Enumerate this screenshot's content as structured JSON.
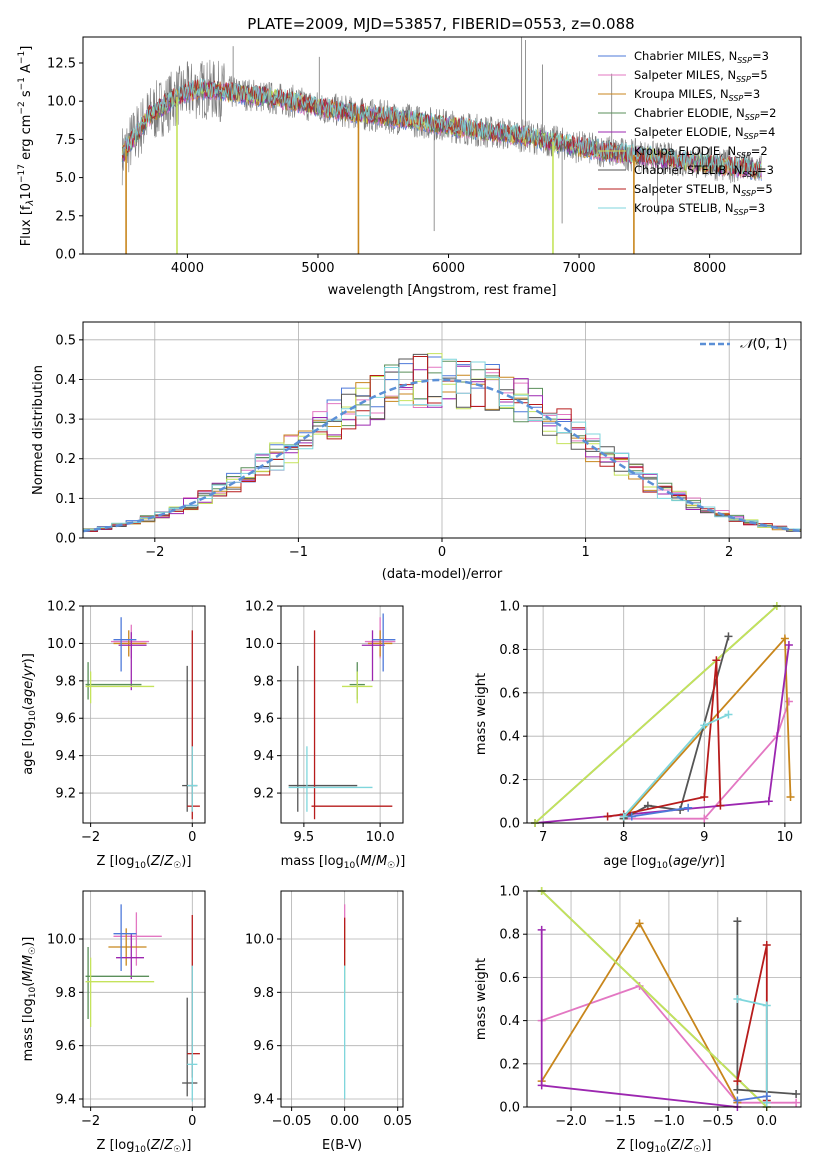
{
  "chart_data": [
    {
      "id": "spectrum",
      "type": "line",
      "title": "PLATE=2009, MJD=53857, FIBERID=0553, z=0.088",
      "xlabel": "wavelength [Angstrom, rest frame]",
      "ylabel": "Flux [f",
      "xlim": [
        3200,
        8700
      ],
      "ylim": [
        0,
        14.2
      ],
      "xticks": [
        4000,
        5000,
        6000,
        7000,
        8000
      ],
      "yticks": [
        0.0,
        2.5,
        5.0,
        7.5,
        10.0,
        12.5
      ],
      "ytick_labels": [
        "0.0",
        "2.5",
        "5.0",
        "7.5",
        "10.0",
        "12.5"
      ],
      "grid": false,
      "legend_position": "top-right",
      "series": [
        {
          "name": "Chabrier MILES, N",
          "nssp": 3,
          "color": "#4e79d9"
        },
        {
          "name": "Salpeter MILES, N",
          "nssp": 5,
          "color": "#e377c2"
        },
        {
          "name": "Kroupa MILES, N",
          "nssp": 3,
          "color": "#c8861c"
        },
        {
          "name": "Chabrier ELODIE, N",
          "nssp": 2,
          "color": "#5a8f5a"
        },
        {
          "name": "Salpeter ELODIE, N",
          "nssp": 4,
          "color": "#9c27b0"
        },
        {
          "name": "Kroupa ELODIE, N",
          "nssp": 2,
          "color": "#c5e35b"
        },
        {
          "name": "Chabrier STELIB, N",
          "nssp": 3,
          "color": "#555555"
        },
        {
          "name": "Salpeter STELIB, N",
          "nssp": 5,
          "color": "#b71c1c"
        },
        {
          "name": "Kroupa STELIB, N",
          "nssp": 3,
          "color": "#7fd6dc"
        }
      ],
      "ssp_sub": "SSP",
      "model_continuum": {
        "x": [
          3500,
          3700,
          3900,
          4000,
          4100,
          4300,
          4500,
          4800,
          5000,
          5300,
          5600,
          6000,
          6300,
          6600,
          7000,
          7300,
          7600,
          7900,
          8100,
          8400
        ],
        "y": [
          6.5,
          9.0,
          10.2,
          10.6,
          10.8,
          10.6,
          10.4,
          10.0,
          9.6,
          9.2,
          8.9,
          8.4,
          8.0,
          7.7,
          7.0,
          6.6,
          6.3,
          6.0,
          5.8,
          5.5
        ]
      },
      "model_dropouts": [
        {
          "x": 3530,
          "color": "#c8861c"
        },
        {
          "x": 3920,
          "color": "#c5e35b"
        },
        {
          "x": 5310,
          "color": "#c8861c"
        },
        {
          "x": 6800,
          "color": "#c5e35b"
        },
        {
          "x": 7420,
          "color": "#c8861c"
        }
      ],
      "data_spikes": [
        {
          "x": 6560,
          "top": 14.2
        },
        {
          "x": 6590,
          "top": 14.0
        },
        {
          "x": 4350,
          "top": 13.6
        },
        {
          "x": 5010,
          "top": 12.9
        },
        {
          "x": 6720,
          "top": 12.4
        },
        {
          "x": 7250,
          "top": 11.8
        },
        {
          "x": 5890,
          "top": 1.5,
          "down": true
        },
        {
          "x": 6870,
          "top": 2.0,
          "down": true
        },
        {
          "x": 7600,
          "top": 2.6,
          "down": true
        }
      ]
    },
    {
      "id": "residuals",
      "type": "histogram",
      "xlabel": "(data-model)/error",
      "ylabel": "Normed distribution",
      "xlim": [
        -2.5,
        2.5
      ],
      "ylim": [
        0,
        0.545
      ],
      "xticks": [
        -2,
        -1,
        0,
        1,
        2
      ],
      "xtick_labels": [
        "−2",
        "−1",
        "0",
        "1",
        "2"
      ],
      "yticks": [
        0.0,
        0.1,
        0.2,
        0.3,
        0.4,
        0.5
      ],
      "ytick_labels": [
        "0.0",
        "0.1",
        "0.2",
        "0.3",
        "0.4",
        "0.5"
      ],
      "grid": true,
      "legend_position": "top-right",
      "reference_curve": {
        "name": "N(0, 1)",
        "label_main": "𝒩",
        "label_args": "(0, 1)",
        "color": "#5b8fd6",
        "dashed": true
      },
      "series_colors": [
        "#4e79d9",
        "#e377c2",
        "#c8861c",
        "#5a8f5a",
        "#9c27b0",
        "#c5e35b",
        "#555555",
        "#b71c1c",
        "#7fd6dc"
      ],
      "bin_width": 0.1,
      "bin_start": -2.5
    },
    {
      "id": "age-vs-z",
      "type": "scatter",
      "xlabel": "Z [log",
      "ylabel": "age  [log",
      "xlim": [
        -2.15,
        0.25
      ],
      "ylim": [
        9.04,
        10.2
      ],
      "xticks": [
        -2,
        0
      ],
      "xtick_labels": [
        "−2",
        "0"
      ],
      "yticks": [
        9.2,
        9.4,
        9.6,
        9.8,
        10.0,
        10.2
      ],
      "ytick_labels": [
        "9.2",
        "9.4",
        "9.6",
        "9.8",
        "10.0",
        "10.2"
      ],
      "grid": true,
      "points": [
        {
          "x": -1.2,
          "y": 10.01,
          "xlo": -1.6,
          "xhi": -0.85,
          "ylo": 9.92,
          "yhi": 10.1,
          "color": "#e377c2"
        },
        {
          "x": -1.25,
          "y": 10.0,
          "xlo": -1.55,
          "xhi": -0.9,
          "ylo": 9.93,
          "yhi": 10.07,
          "color": "#c8861c"
        },
        {
          "x": -1.2,
          "y": 9.99,
          "xlo": -1.45,
          "xhi": -0.9,
          "ylo": 9.75,
          "yhi": 10.06,
          "color": "#9c27b0"
        },
        {
          "x": -1.4,
          "y": 10.02,
          "xlo": -1.55,
          "xhi": -1.1,
          "ylo": 9.85,
          "yhi": 10.14,
          "color": "#4e79d9"
        },
        {
          "x": -2.05,
          "y": 9.78,
          "xlo": -2.1,
          "xhi": -1.0,
          "ylo": 9.7,
          "yhi": 9.9,
          "color": "#5a8f5a"
        },
        {
          "x": -2.0,
          "y": 9.77,
          "xlo": -2.1,
          "xhi": -0.75,
          "ylo": 9.68,
          "yhi": 9.85,
          "color": "#c5e35b"
        },
        {
          "x": -0.1,
          "y": 9.24,
          "xlo": -0.2,
          "xhi": 0.1,
          "ylo": 9.1,
          "yhi": 9.88,
          "color": "#555555"
        },
        {
          "x": 0.0,
          "y": 9.13,
          "xlo": -0.1,
          "xhi": 0.15,
          "ylo": 9.06,
          "yhi": 10.07,
          "color": "#b71c1c"
        },
        {
          "x": 0.0,
          "y": 9.24,
          "xlo": -0.1,
          "xhi": 0.1,
          "ylo": 9.1,
          "yhi": 9.45,
          "color": "#7fd6dc"
        }
      ]
    },
    {
      "id": "age-vs-mass",
      "type": "scatter",
      "xlabel": "mass [log",
      "ylabel": "",
      "xlim": [
        9.35,
        10.15
      ],
      "ylim": [
        9.04,
        10.2
      ],
      "xticks": [
        9.5,
        10.0
      ],
      "xtick_labels": [
        "9.5",
        "10.0"
      ],
      "yticks": [
        9.2,
        9.4,
        9.6,
        9.8,
        10.0,
        10.2
      ],
      "ytick_labels": [
        "9.2",
        "9.4",
        "9.6",
        "9.8",
        "10.0",
        "10.2"
      ],
      "grid": true,
      "points": [
        {
          "x": 10.0,
          "y": 10.01,
          "xlo": 9.9,
          "xhi": 10.1,
          "ylo": 9.92,
          "yhi": 10.14,
          "color": "#e377c2"
        },
        {
          "x": 10.0,
          "y": 10.0,
          "xlo": 9.92,
          "xhi": 10.08,
          "ylo": 9.93,
          "yhi": 10.07,
          "color": "#c8861c"
        },
        {
          "x": 9.95,
          "y": 9.99,
          "xlo": 9.88,
          "xhi": 10.03,
          "ylo": 9.8,
          "yhi": 10.07,
          "color": "#9c27b0"
        },
        {
          "x": 10.02,
          "y": 10.02,
          "xlo": 9.95,
          "xhi": 10.1,
          "ylo": 9.85,
          "yhi": 10.16,
          "color": "#4e79d9"
        },
        {
          "x": 9.85,
          "y": 9.78,
          "xlo": 9.8,
          "xhi": 9.9,
          "ylo": 9.7,
          "yhi": 9.9,
          "color": "#5a8f5a"
        },
        {
          "x": 9.85,
          "y": 9.77,
          "xlo": 9.75,
          "xhi": 9.95,
          "ylo": 9.68,
          "yhi": 9.85,
          "color": "#c5e35b"
        },
        {
          "x": 9.46,
          "y": 9.24,
          "xlo": 9.4,
          "xhi": 9.85,
          "ylo": 9.1,
          "yhi": 9.88,
          "color": "#555555"
        },
        {
          "x": 9.57,
          "y": 9.13,
          "xlo": 9.55,
          "xhi": 10.08,
          "ylo": 9.06,
          "yhi": 10.07,
          "color": "#b71c1c"
        },
        {
          "x": 9.52,
          "y": 9.23,
          "xlo": 9.4,
          "xhi": 9.95,
          "ylo": 9.1,
          "yhi": 9.45,
          "color": "#7fd6dc"
        }
      ]
    },
    {
      "id": "weight-vs-age",
      "type": "line",
      "xlabel": "age  [log",
      "ylabel": "mass weight",
      "xlim": [
        6.8,
        10.2
      ],
      "ylim": [
        0,
        1.0
      ],
      "xticks": [
        7,
        8,
        9,
        10
      ],
      "xtick_labels": [
        "7",
        "8",
        "9",
        "10"
      ],
      "yticks": [
        0.0,
        0.2,
        0.4,
        0.6,
        0.8,
        1.0
      ],
      "ytick_labels": [
        "0.0",
        "0.2",
        "0.4",
        "0.6",
        "0.8",
        "1.0"
      ],
      "grid": true,
      "series": [
        {
          "color": "#e377c2",
          "x": [
            8.0,
            9.0,
            9.9,
            10.05
          ],
          "y": [
            0.02,
            0.02,
            0.4,
            0.56
          ]
        },
        {
          "color": "#c8861c",
          "x": [
            8.0,
            10.0,
            10.07
          ],
          "y": [
            0.02,
            0.85,
            0.12
          ]
        },
        {
          "color": "#9c27b0",
          "x": [
            6.9,
            9.8,
            10.05
          ],
          "y": [
            0.0,
            0.1,
            0.82
          ]
        },
        {
          "color": "#5a8f5a",
          "x": [
            6.9,
            9.9
          ],
          "y": [
            0.0,
            1.0
          ]
        },
        {
          "color": "#c5e35b",
          "x": [
            6.9,
            9.9
          ],
          "y": [
            0.0,
            1.0
          ]
        },
        {
          "color": "#555555",
          "x": [
            8.0,
            8.3,
            8.7,
            9.3
          ],
          "y": [
            0.02,
            0.08,
            0.06,
            0.86
          ]
        },
        {
          "color": "#b71c1c",
          "x": [
            7.8,
            8.0,
            9.0,
            9.15,
            9.2
          ],
          "y": [
            0.03,
            0.04,
            0.12,
            0.75,
            0.08
          ]
        },
        {
          "color": "#7fd6dc",
          "x": [
            8.0,
            9.0,
            9.3
          ],
          "y": [
            0.03,
            0.45,
            0.5
          ]
        },
        {
          "color": "#4e79d9",
          "x": [
            8.1,
            8.8
          ],
          "y": [
            0.03,
            0.07
          ]
        }
      ]
    },
    {
      "id": "mass-vs-z",
      "type": "scatter",
      "xlabel": "Z [log",
      "ylabel": "mass [log",
      "xlim": [
        -2.15,
        0.25
      ],
      "ylim": [
        9.37,
        10.18
      ],
      "xticks": [
        -2,
        0
      ],
      "xtick_labels": [
        "−2",
        "0"
      ],
      "yticks": [
        9.4,
        9.6,
        9.8,
        10.0
      ],
      "ytick_labels": [
        "9.4",
        "9.6",
        "9.8",
        "10.0"
      ],
      "grid": true,
      "points": [
        {
          "x": -1.1,
          "y": 10.01,
          "xlo": -1.55,
          "xhi": -0.6,
          "ylo": 9.9,
          "yhi": 10.1,
          "color": "#e377c2"
        },
        {
          "x": -1.3,
          "y": 9.97,
          "xlo": -1.65,
          "xhi": -0.9,
          "ylo": 9.9,
          "yhi": 10.04,
          "color": "#c8861c"
        },
        {
          "x": -1.2,
          "y": 9.93,
          "xlo": -1.5,
          "xhi": -0.95,
          "ylo": 9.85,
          "yhi": 10.02,
          "color": "#9c27b0"
        },
        {
          "x": -1.4,
          "y": 10.02,
          "xlo": -1.55,
          "xhi": -1.1,
          "ylo": 9.88,
          "yhi": 10.13,
          "color": "#4e79d9"
        },
        {
          "x": -2.05,
          "y": 9.86,
          "xlo": -2.1,
          "xhi": -0.85,
          "ylo": 9.7,
          "yhi": 9.97,
          "color": "#5a8f5a"
        },
        {
          "x": -2.0,
          "y": 9.84,
          "xlo": -2.1,
          "xhi": -0.75,
          "ylo": 9.67,
          "yhi": 9.93,
          "color": "#c5e35b"
        },
        {
          "x": -0.1,
          "y": 9.46,
          "xlo": -0.2,
          "xhi": 0.1,
          "ylo": 9.41,
          "yhi": 9.78,
          "color": "#555555"
        },
        {
          "x": 0.0,
          "y": 9.57,
          "xlo": -0.1,
          "xhi": 0.15,
          "ylo": 9.48,
          "yhi": 10.09,
          "color": "#b71c1c"
        },
        {
          "x": 0.0,
          "y": 9.53,
          "xlo": -0.1,
          "xhi": 0.1,
          "ylo": 9.39,
          "yhi": 9.9,
          "color": "#7fd6dc"
        }
      ]
    },
    {
      "id": "mass-vs-ebv",
      "type": "scatter",
      "xlabel": "E(B-V)",
      "ylabel": "",
      "xlim": [
        -0.06,
        0.055
      ],
      "ylim": [
        9.37,
        10.18
      ],
      "xticks": [
        -0.05,
        0.0,
        0.05
      ],
      "xtick_labels": [
        "−0.05",
        "0.00",
        "0.05"
      ],
      "yticks": [
        9.4,
        9.6,
        9.8,
        10.0
      ],
      "ytick_labels": [
        "9.4",
        "9.6",
        "9.8",
        "10.0"
      ],
      "grid": true,
      "points": [
        {
          "x": 0.0,
          "y": 10.05,
          "ylo": 9.95,
          "yhi": 10.13,
          "color": "#e377c2"
        },
        {
          "x": 0.0,
          "y": 9.97,
          "ylo": 9.8,
          "yhi": 10.05,
          "color": "#c5e35b"
        },
        {
          "x": 0.0,
          "y": 9.95,
          "ylo": 9.9,
          "yhi": 10.08,
          "color": "#b71c1c"
        },
        {
          "x": 0.0,
          "y": 9.65,
          "ylo": 9.4,
          "yhi": 9.9,
          "color": "#7fd6dc"
        }
      ]
    },
    {
      "id": "weight-vs-z",
      "type": "line",
      "xlabel": "Z [log",
      "ylabel": "mass weight",
      "xlim": [
        -2.45,
        0.35
      ],
      "ylim": [
        0,
        1.0
      ],
      "xticks": [
        -2.0,
        -1.5,
        -1.0,
        -0.5,
        0.0
      ],
      "xtick_labels": [
        "−2.0",
        "−1.5",
        "−1.0",
        "−0.5",
        "0.0"
      ],
      "yticks": [
        0.0,
        0.2,
        0.4,
        0.6,
        0.8,
        1.0
      ],
      "ytick_labels": [
        "0.0",
        "0.2",
        "0.4",
        "0.6",
        "0.8",
        "1.0"
      ],
      "grid": true,
      "series": [
        {
          "color": "#e377c2",
          "x": [
            -2.3,
            -1.3,
            -0.3,
            0.3
          ],
          "y": [
            0.4,
            0.56,
            0.02,
            0.02
          ]
        },
        {
          "color": "#c8861c",
          "x": [
            -2.3,
            -1.3,
            -0.3
          ],
          "y": [
            0.12,
            0.85,
            0.02
          ]
        },
        {
          "color": "#9c27b0",
          "x": [
            -2.3,
            -2.3,
            -0.3
          ],
          "y": [
            0.82,
            0.1,
            0.0
          ]
        },
        {
          "color": "#5a8f5a",
          "x": [
            -2.3,
            0.0
          ],
          "y": [
            1.0,
            0.0
          ]
        },
        {
          "color": "#c5e35b",
          "x": [
            -2.3,
            0.0
          ],
          "y": [
            1.0,
            0.0
          ]
        },
        {
          "color": "#555555",
          "x": [
            -0.3,
            -0.3,
            0.3
          ],
          "y": [
            0.86,
            0.08,
            0.06
          ]
        },
        {
          "color": "#b71c1c",
          "x": [
            -0.3,
            0.0,
            0.0
          ],
          "y": [
            0.12,
            0.75,
            0.03
          ]
        },
        {
          "color": "#7fd6dc",
          "x": [
            -0.3,
            0.0,
            0.0
          ],
          "y": [
            0.5,
            0.47,
            0.02
          ]
        },
        {
          "color": "#4e79d9",
          "x": [
            -0.3,
            0.0
          ],
          "y": [
            0.03,
            0.05
          ]
        }
      ]
    }
  ]
}
